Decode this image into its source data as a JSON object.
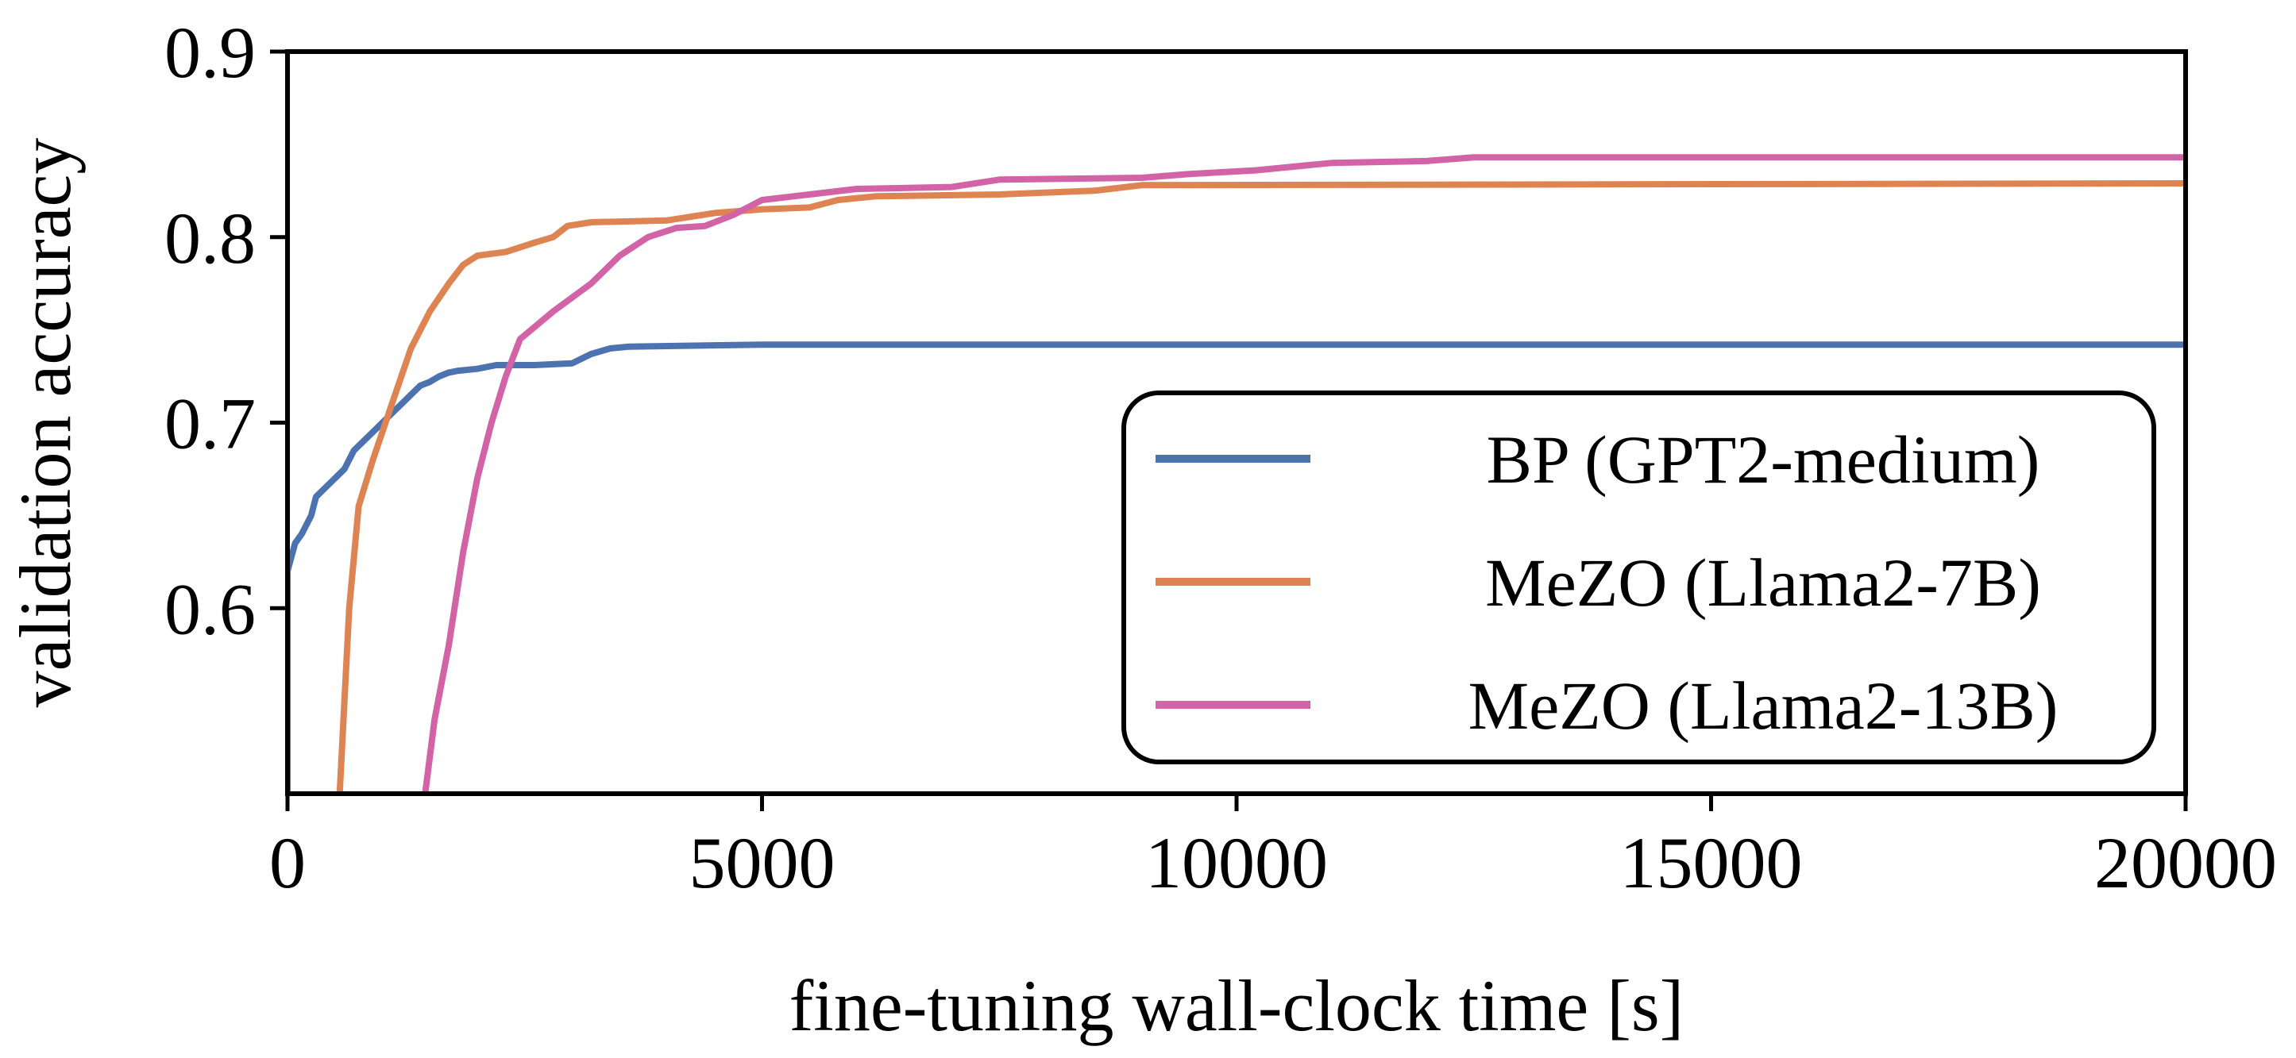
{
  "chart_data": {
    "type": "line",
    "title": "",
    "xlabel": "fine-tuning wall-clock time [s]",
    "ylabel": "validation accuracy",
    "xlim": [
      0,
      20000
    ],
    "ylim": [
      0.5,
      0.9
    ],
    "xticks": [
      0,
      5000,
      10000,
      15000,
      20000
    ],
    "xtick_labels": [
      "0",
      "5000",
      "10000",
      "15000",
      "20000"
    ],
    "yticks": [
      0.6,
      0.7,
      0.8,
      0.9
    ],
    "ytick_labels": [
      "0.6",
      "0.7",
      "0.8",
      "0.9"
    ],
    "grid": false,
    "legend_position": "lower-right",
    "series": [
      {
        "name": "BP (GPT2-medium)",
        "color": "#4c72b0",
        "points": [
          [
            0,
            0.5
          ],
          [
            0,
            0.62
          ],
          [
            80,
            0.635
          ],
          [
            150,
            0.64
          ],
          [
            200,
            0.645
          ],
          [
            250,
            0.65
          ],
          [
            300,
            0.66
          ],
          [
            400,
            0.665
          ],
          [
            500,
            0.67
          ],
          [
            600,
            0.675
          ],
          [
            700,
            0.685
          ],
          [
            800,
            0.69
          ],
          [
            900,
            0.695
          ],
          [
            1000,
            0.7
          ],
          [
            1100,
            0.705
          ],
          [
            1200,
            0.71
          ],
          [
            1300,
            0.715
          ],
          [
            1400,
            0.72
          ],
          [
            1500,
            0.722
          ],
          [
            1600,
            0.725
          ],
          [
            1700,
            0.727
          ],
          [
            1800,
            0.728
          ],
          [
            2000,
            0.729
          ],
          [
            2200,
            0.731
          ],
          [
            2600,
            0.731
          ],
          [
            3000,
            0.732
          ],
          [
            3200,
            0.737
          ],
          [
            3400,
            0.74
          ],
          [
            3600,
            0.741
          ],
          [
            5000,
            0.742
          ],
          [
            20000,
            0.742
          ]
        ]
      },
      {
        "name": "MeZO (Llama2-7B)",
        "color": "#dd8452",
        "points": [
          [
            550,
            0.5
          ],
          [
            650,
            0.6
          ],
          [
            750,
            0.655
          ],
          [
            900,
            0.68
          ],
          [
            1100,
            0.71
          ],
          [
            1300,
            0.74
          ],
          [
            1500,
            0.76
          ],
          [
            1700,
            0.775
          ],
          [
            1850,
            0.785
          ],
          [
            2000,
            0.79
          ],
          [
            2300,
            0.792
          ],
          [
            2600,
            0.797
          ],
          [
            2800,
            0.8
          ],
          [
            2950,
            0.806
          ],
          [
            3200,
            0.808
          ],
          [
            4000,
            0.809
          ],
          [
            4500,
            0.813
          ],
          [
            5000,
            0.815
          ],
          [
            5500,
            0.816
          ],
          [
            5800,
            0.82
          ],
          [
            6200,
            0.822
          ],
          [
            7500,
            0.823
          ],
          [
            8500,
            0.825
          ],
          [
            9000,
            0.828
          ],
          [
            20000,
            0.829
          ]
        ]
      },
      {
        "name": "MeZO (Llama2-13B)",
        "color": "#d163a6",
        "points": [
          [
            1450,
            0.5
          ],
          [
            1550,
            0.54
          ],
          [
            1700,
            0.58
          ],
          [
            1850,
            0.63
          ],
          [
            2000,
            0.67
          ],
          [
            2150,
            0.7
          ],
          [
            2300,
            0.725
          ],
          [
            2450,
            0.745
          ],
          [
            2800,
            0.76
          ],
          [
            3200,
            0.775
          ],
          [
            3500,
            0.79
          ],
          [
            3800,
            0.8
          ],
          [
            4100,
            0.805
          ],
          [
            4400,
            0.806
          ],
          [
            4700,
            0.812
          ],
          [
            5000,
            0.82
          ],
          [
            5500,
            0.823
          ],
          [
            6000,
            0.826
          ],
          [
            7000,
            0.827
          ],
          [
            7500,
            0.831
          ],
          [
            9000,
            0.832
          ],
          [
            9500,
            0.834
          ],
          [
            10200,
            0.836
          ],
          [
            11000,
            0.84
          ],
          [
            12000,
            0.841
          ],
          [
            12500,
            0.843
          ],
          [
            20000,
            0.843
          ]
        ]
      }
    ]
  }
}
